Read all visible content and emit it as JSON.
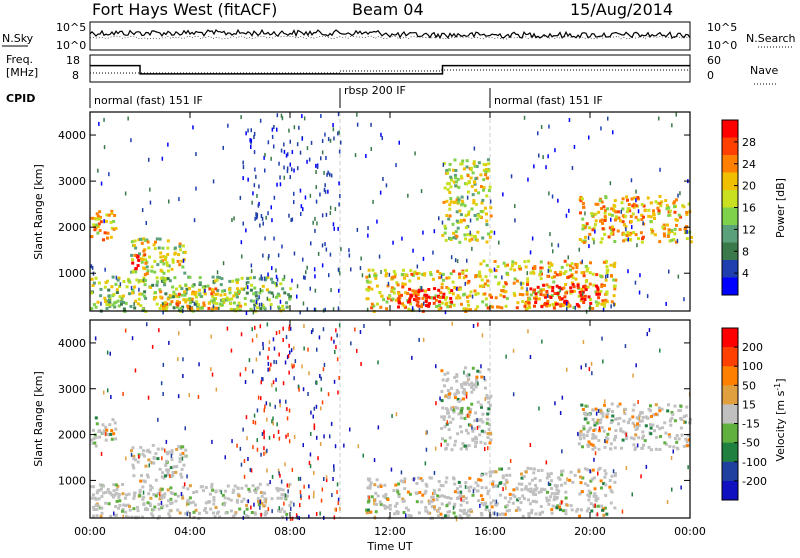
{
  "header": {
    "station": "Fort Hays West (fitACF)",
    "beam": "Beam 04",
    "date": "15/Aug/2014"
  },
  "noise_panel": {
    "left_label": "N.Sky",
    "right_label": "N.Search",
    "ticks_left": [
      "10^5",
      "10^0"
    ],
    "ticks_right": [
      "10^5",
      "10^0"
    ]
  },
  "freq_panel": {
    "left_label_1": "Freq.",
    "left_label_2": "[MHz]",
    "right_label": "Nave",
    "ticks_left": [
      "18",
      "8"
    ],
    "ticks_right": [
      "60",
      "0"
    ],
    "freq_steps": [
      {
        "t0": 0.0,
        "t1": 2.0,
        "mhz": 14.5
      },
      {
        "t0": 2.0,
        "t1": 14.1,
        "mhz": 10.2
      },
      {
        "t0": 14.1,
        "t1": 24.0,
        "mhz": 14.5
      }
    ]
  },
  "cpid": {
    "label": "CPID",
    "segments": [
      {
        "start": 0,
        "end": 10,
        "name": "normal (fast) 151 IF"
      },
      {
        "start": 10,
        "end": 16,
        "name": "rbsp 200 IF"
      },
      {
        "start": 16,
        "end": 24,
        "name": "normal (fast) 151 IF"
      }
    ]
  },
  "x_axis": {
    "title": "Time UT",
    "ticks": [
      "00:00",
      "04:00",
      "08:00",
      "12:00",
      "16:00",
      "20:00",
      "00:00"
    ],
    "range_hours": [
      0,
      24
    ]
  },
  "power_panel": {
    "ylabel": "Slant Range [km]",
    "yticks": [
      "4000",
      "3000",
      "2000",
      "1000"
    ],
    "colorbar_title": "Power [dB]",
    "colorbar_ticks": [
      "28",
      "24",
      "20",
      "16",
      "12",
      "8",
      "4"
    ],
    "colors": [
      "#0000ff",
      "#1f3fb0",
      "#3a7a4a",
      "#5aa07a",
      "#7fd04a",
      "#c8e020",
      "#f0c000",
      "#ff8000",
      "#ff4000",
      "#ff0000"
    ]
  },
  "velocity_panel": {
    "ylabel": "Slant Range [km]",
    "yticks": [
      "4000",
      "3000",
      "2000",
      "1000"
    ],
    "colorbar_title": "Velocity [m s",
    "colorbar_title_sup": "-1",
    "colorbar_title_end": "]",
    "colorbar_ticks": [
      "200",
      "100",
      "50",
      "15",
      "-15",
      "-50",
      "-100",
      "-200"
    ],
    "colors": [
      "#1010c0",
      "#2040a0",
      "#208040",
      "#60b040",
      "#c0c0c0",
      "#e0a040",
      "#ff8000",
      "#ff4000",
      "#ff0000"
    ]
  },
  "chart_data": {
    "type": "heatmap",
    "title": "Fort Hays West (fitACF)",
    "xlabel": "Time UT",
    "ylabel": "Slant Range [km]",
    "xlim": [
      0,
      24
    ],
    "ylim": [
      180,
      4500
    ],
    "power_regions": [
      {
        "t0": 0.0,
        "t1": 1.0,
        "r0": 1750,
        "r1": 2450,
        "p": 18
      },
      {
        "t0": 1.6,
        "t1": 3.8,
        "r0": 1000,
        "r1": 1800,
        "p": 14
      },
      {
        "t0": 1.6,
        "t1": 2.2,
        "r0": 1100,
        "r1": 1450,
        "p": 26
      },
      {
        "t0": 0.0,
        "t1": 8.0,
        "r0": 200,
        "r1": 950,
        "p": 12
      },
      {
        "t0": 2.5,
        "t1": 6.0,
        "r0": 250,
        "r1": 700,
        "p": 20
      },
      {
        "t0": 14.0,
        "t1": 16.0,
        "r0": 1700,
        "r1": 3500,
        "p": 14
      },
      {
        "t0": 11.0,
        "t1": 15.5,
        "r0": 200,
        "r1": 1100,
        "p": 20
      },
      {
        "t0": 12.2,
        "t1": 14.5,
        "r0": 300,
        "r1": 700,
        "p": 28
      },
      {
        "t0": 15.5,
        "t1": 21.0,
        "r0": 250,
        "r1": 1300,
        "p": 18
      },
      {
        "t0": 17.5,
        "t1": 20.5,
        "r0": 300,
        "r1": 800,
        "p": 28
      },
      {
        "t0": 19.5,
        "t1": 24.0,
        "r0": 1700,
        "r1": 2700,
        "p": 18
      }
    ],
    "velocity_regions": [
      {
        "t0": 0.0,
        "t1": 1.0,
        "r0": 1750,
        "r1": 2450,
        "v": 0
      },
      {
        "t0": 1.6,
        "t1": 3.8,
        "r0": 1000,
        "r1": 1800,
        "v": 0
      },
      {
        "t0": 0.0,
        "t1": 8.0,
        "r0": 200,
        "r1": 950,
        "v": 20
      },
      {
        "t0": 14.0,
        "t1": 16.0,
        "r0": 1700,
        "r1": 3500,
        "v": 0
      },
      {
        "t0": 11.0,
        "t1": 15.5,
        "r0": 200,
        "r1": 1100,
        "v": 0
      },
      {
        "t0": 15.5,
        "t1": 21.0,
        "r0": 250,
        "r1": 1300,
        "v": 0
      },
      {
        "t0": 19.5,
        "t1": 24.0,
        "r0": 1700,
        "r1": 2700,
        "v": 0
      }
    ]
  }
}
